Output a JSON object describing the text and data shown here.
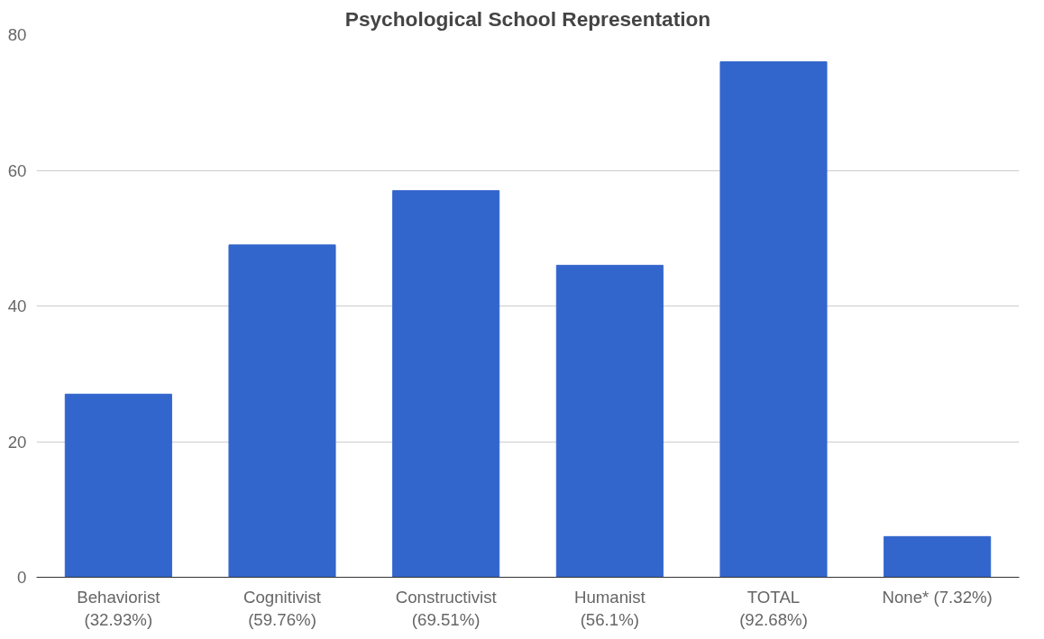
{
  "chart_data": {
    "type": "bar",
    "title": "Psychological School Representation",
    "categories": [
      "Behaviorist\n(32.93%)",
      "Cognitivist\n(59.76%)",
      "Constructivist\n(69.51%)",
      "Humanist\n(56.1%)",
      "TOTAL\n(92.68%)",
      "None* (7.32%)"
    ],
    "values": [
      27,
      49,
      57,
      46,
      76,
      6
    ],
    "color": "#3366cc",
    "ylim": [
      0,
      80
    ],
    "yticks": [
      0,
      20,
      40,
      60,
      80
    ],
    "grid": "y"
  }
}
